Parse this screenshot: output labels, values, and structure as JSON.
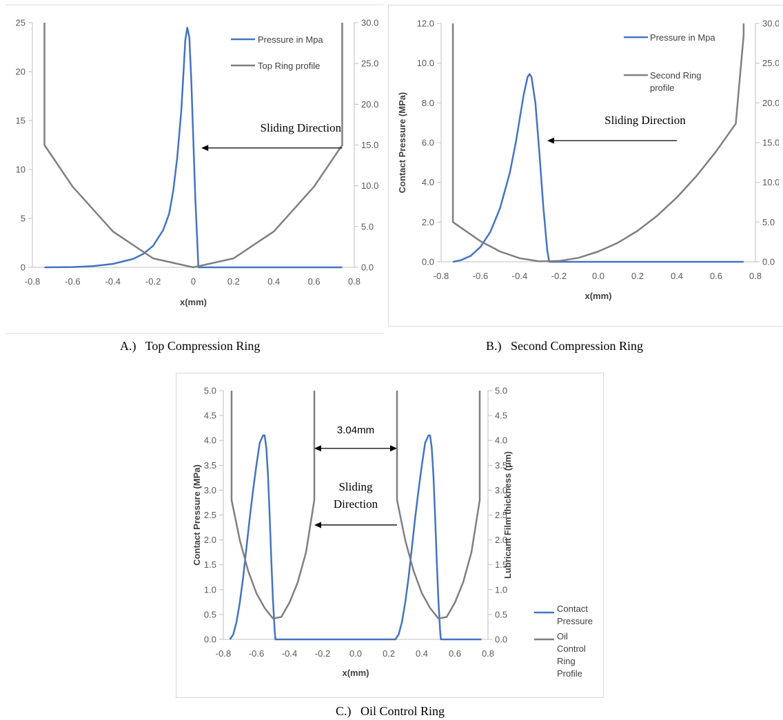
{
  "colors": {
    "pressure": "#4472c4",
    "profile": "#7f7f7f",
    "axis": "#bfbfbf",
    "arrow": "#000000"
  },
  "chart_data": [
    {
      "type": "line",
      "caption": "A.)   Top Compression Ring",
      "xlabel": "x(mm)",
      "ylabel": "",
      "y2label": "",
      "xlim": [
        -0.8,
        0.8
      ],
      "xticks": [
        "-0.8",
        "-0.6",
        "-0.4",
        "-0.2",
        "0",
        "0.2",
        "0.4",
        "0.6",
        "0.8"
      ],
      "ylim": [
        0,
        25
      ],
      "yticks": [
        "0",
        "5",
        "10",
        "15",
        "20",
        "25"
      ],
      "y2lim": [
        0,
        30
      ],
      "y2ticks": [
        "0.0",
        "5.0",
        "10.0",
        "15.0",
        "20.0",
        "25.0",
        "30.0"
      ],
      "series": [
        {
          "name": "Pressure in Mpa",
          "axis": "left",
          "color": "#4472c4",
          "x": [
            -0.74,
            -0.6,
            -0.5,
            -0.4,
            -0.3,
            -0.25,
            -0.2,
            -0.15,
            -0.12,
            -0.1,
            -0.08,
            -0.06,
            -0.05,
            -0.04,
            -0.03,
            -0.02,
            -0.01,
            0.0,
            0.01,
            0.02,
            0.025,
            0.1,
            0.5,
            0.74
          ],
          "values": [
            0.0,
            0.03,
            0.12,
            0.35,
            0.85,
            1.35,
            2.2,
            3.8,
            5.5,
            7.8,
            11.2,
            16.0,
            19.5,
            23.2,
            24.5,
            23.5,
            19.0,
            13.0,
            7.0,
            2.5,
            0.0,
            0.0,
            0.0,
            0.0
          ]
        },
        {
          "name": "Top Ring profile",
          "axis": "right",
          "color": "#7f7f7f",
          "x": [
            -0.74,
            -0.74,
            -0.6,
            -0.4,
            -0.2,
            0.0,
            0.2,
            0.4,
            0.6,
            0.74,
            0.74
          ],
          "values": [
            30.0,
            15.0,
            9.9,
            4.4,
            1.1,
            0.0,
            1.1,
            4.4,
            9.9,
            15.0,
            30.0
          ]
        }
      ],
      "annotations": [
        {
          "text": "Sliding Direction",
          "arrow_from_x": 0.74,
          "arrow_to_x": 0.04,
          "arrow_y": 12.2
        }
      ]
    },
    {
      "type": "line",
      "caption": "B.)   Second Compression Ring",
      "xlabel": "x(mm)",
      "ylabel": "Contact Pressure (MPa)",
      "y2label": "",
      "xlim": [
        -0.8,
        0.8
      ],
      "xticks": [
        "-0.8",
        "-0.6",
        "-0.4",
        "-0.2",
        "0.0",
        "0.2",
        "0.4",
        "0.6",
        "0.8"
      ],
      "ylim": [
        0,
        12
      ],
      "yticks": [
        "0.0",
        "2.0",
        "4.0",
        "6.0",
        "8.0",
        "10.0",
        "12.0"
      ],
      "y2lim": [
        0,
        30
      ],
      "y2ticks": [
        "0.0",
        "5.0",
        "10.0",
        "15.0",
        "20.0",
        "25.0",
        "30.0"
      ],
      "series": [
        {
          "name": "Pressure in Mpa",
          "axis": "left",
          "color": "#4472c4",
          "x": [
            -0.74,
            -0.7,
            -0.65,
            -0.6,
            -0.55,
            -0.5,
            -0.45,
            -0.42,
            -0.4,
            -0.38,
            -0.36,
            -0.35,
            -0.34,
            -0.32,
            -0.3,
            -0.28,
            -0.26,
            -0.25,
            0.0,
            0.5,
            0.74
          ],
          "values": [
            0.0,
            0.08,
            0.3,
            0.75,
            1.5,
            2.7,
            4.5,
            6.0,
            7.2,
            8.4,
            9.3,
            9.45,
            9.3,
            8.0,
            5.5,
            2.8,
            0.6,
            0.0,
            0.0,
            0.0,
            0.0
          ]
        },
        {
          "name": "Second Ring profile",
          "axis": "right",
          "color": "#7f7f7f",
          "x": [
            -0.74,
            -0.74,
            -0.6,
            -0.5,
            -0.4,
            -0.3,
            -0.2,
            -0.1,
            0.0,
            0.1,
            0.2,
            0.3,
            0.4,
            0.5,
            0.6,
            0.7,
            0.74,
            0.74
          ],
          "values": [
            30.0,
            5.0,
            2.6,
            1.3,
            0.45,
            0.06,
            0.1,
            0.5,
            1.3,
            2.4,
            3.9,
            5.8,
            8.1,
            10.8,
            13.9,
            17.4,
            28.5,
            30.0
          ]
        }
      ],
      "annotations": [
        {
          "text": "Sliding Direction",
          "arrow_from_x": 0.4,
          "arrow_to_x": -0.26,
          "arrow_y": 6.1
        }
      ]
    },
    {
      "type": "line",
      "caption": "C.)   Oil Control Ring",
      "xlabel": "x(mm)",
      "ylabel": "Contact Pressure (MPa)",
      "y2label": "Lubricant Film thickness (μm)",
      "xlim": [
        -0.8,
        0.8
      ],
      "xticks": [
        "-0.8",
        "-0.6",
        "-0.4",
        "-0.2",
        "0.0",
        "0.2",
        "0.4",
        "0.6",
        "0.8"
      ],
      "ylim": [
        0,
        5
      ],
      "yticks": [
        "0.0",
        "0.5",
        "1.0",
        "1.5",
        "2.0",
        "2.5",
        "3.0",
        "3.5",
        "4.0",
        "4.5",
        "5.0"
      ],
      "y2lim": [
        0,
        5
      ],
      "y2ticks": [
        "0.0",
        "0.5",
        "1.0",
        "1.5",
        "2.0",
        "2.5",
        "3.0",
        "3.5",
        "4.0",
        "4.5",
        "5.0"
      ],
      "series": [
        {
          "name": "Contact Pressure",
          "axis": "left",
          "color": "#4472c4",
          "x": [
            -0.76,
            -0.74,
            -0.72,
            -0.7,
            -0.68,
            -0.66,
            -0.64,
            -0.62,
            -0.6,
            -0.58,
            -0.56,
            -0.55,
            -0.54,
            -0.53,
            -0.52,
            -0.51,
            -0.5,
            -0.49,
            -0.485,
            -0.25,
            0.24,
            0.26,
            0.28,
            0.3,
            0.32,
            0.34,
            0.36,
            0.38,
            0.4,
            0.42,
            0.44,
            0.45,
            0.46,
            0.47,
            0.48,
            0.49,
            0.5,
            0.51,
            0.515,
            0.76
          ],
          "values": [
            0.0,
            0.1,
            0.35,
            0.75,
            1.25,
            1.85,
            2.45,
            3.0,
            3.5,
            3.95,
            4.1,
            4.1,
            3.85,
            3.3,
            2.5,
            1.6,
            0.8,
            0.2,
            0.0,
            0.0,
            0.0,
            0.1,
            0.35,
            0.75,
            1.25,
            1.85,
            2.45,
            3.0,
            3.5,
            3.95,
            4.1,
            4.1,
            3.85,
            3.3,
            2.5,
            1.6,
            0.8,
            0.2,
            0.0,
            0.0
          ]
        },
        {
          "name": "Oil Control Ring Profile",
          "axis": "right",
          "color": "#7f7f7f",
          "x": [
            -0.75,
            -0.75,
            -0.7,
            -0.65,
            -0.6,
            -0.55,
            -0.5,
            -0.45,
            -0.4,
            -0.35,
            -0.3,
            -0.25,
            -0.25
          ],
          "values": [
            5.0,
            2.8,
            1.99,
            1.38,
            0.93,
            0.63,
            0.42,
            0.45,
            0.74,
            1.15,
            1.75,
            2.8,
            5.0
          ],
          "x2": [
            0.25,
            0.25,
            0.3,
            0.35,
            0.4,
            0.45,
            0.5,
            0.55,
            0.6,
            0.65,
            0.7,
            0.75,
            0.75
          ],
          "values2": [
            5.0,
            2.8,
            1.99,
            1.38,
            0.93,
            0.63,
            0.42,
            0.45,
            0.74,
            1.15,
            1.75,
            2.8,
            5.0
          ]
        }
      ],
      "annotations": [
        {
          "text": "3.04mm",
          "arrow_from_x": -0.25,
          "arrow_to_x": 0.25,
          "arrow_y": 3.84,
          "both_heads": true
        },
        {
          "text_lines": [
            "Sliding",
            "Direction"
          ],
          "arrow_from_x": 0.25,
          "arrow_to_x": -0.25,
          "arrow_y": 2.3
        }
      ]
    }
  ]
}
